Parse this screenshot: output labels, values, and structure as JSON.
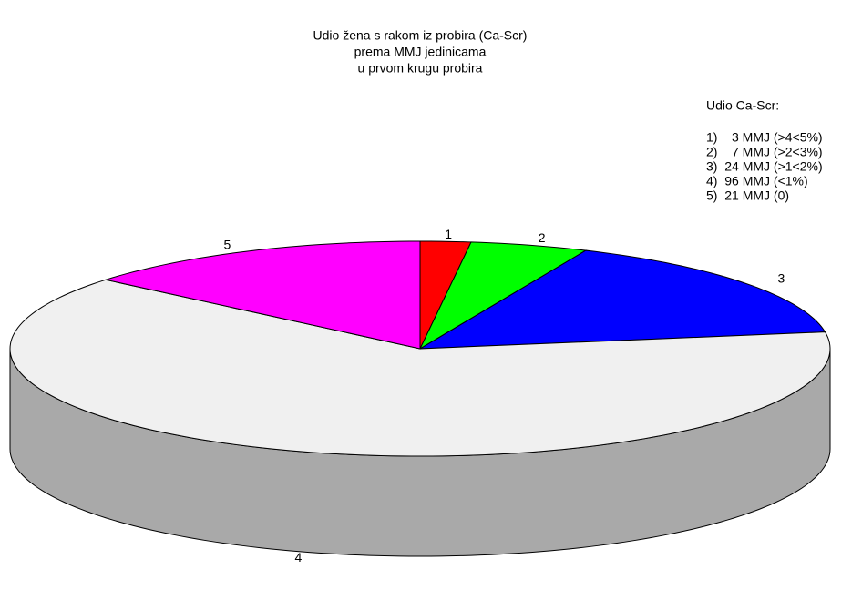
{
  "chart_data": {
    "type": "pie3d",
    "title": [
      "Udio žena s rakom iz probira (Ca-Scr)",
      "prema MMJ jedinicama",
      "u prvom krugu probira"
    ],
    "categories": [
      "1",
      "2",
      "3",
      "4",
      "5"
    ],
    "values": [
      3,
      7,
      24,
      96,
      21
    ],
    "colors": [
      "#ff0000",
      "#00ff00",
      "#0000ff",
      "#f0f0f0",
      "#ff00ff"
    ],
    "side_colors": [
      "#aa0000",
      "#00aa00",
      "#0000aa",
      "#a9a9a9",
      "#aa00aa"
    ],
    "legend_title": "Udio Ca-Scr:",
    "legend_labels": [
      "1)    3 MMJ (>4<5%)",
      "2)    7 MMJ (>2<3%)",
      "3)  24 MMJ (>1<2%)",
      "4)  96 MMJ (<1%)",
      "5)  21 MMJ (0)"
    ]
  }
}
